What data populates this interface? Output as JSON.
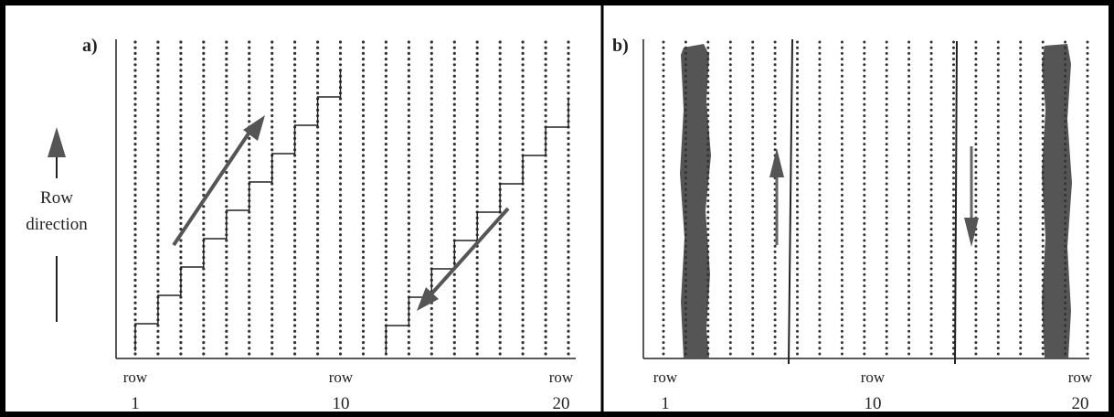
{
  "panel_a": {
    "label": "a)",
    "tick_labels": [
      {
        "word": "row",
        "number": "1"
      },
      {
        "word": "row",
        "number": "10"
      },
      {
        "word": "row",
        "number": "20"
      }
    ]
  },
  "panel_b": {
    "label": "b)",
    "tick_labels": [
      {
        "word": "row",
        "number": "1"
      },
      {
        "word": "row",
        "number": "10"
      },
      {
        "word": "row",
        "number": "20"
      }
    ]
  },
  "direction": {
    "line1": "Row",
    "line2": "direction"
  },
  "colors": {
    "ink": "#222222",
    "dots": "#333333",
    "band": "#555555",
    "frame": "#000000"
  }
}
